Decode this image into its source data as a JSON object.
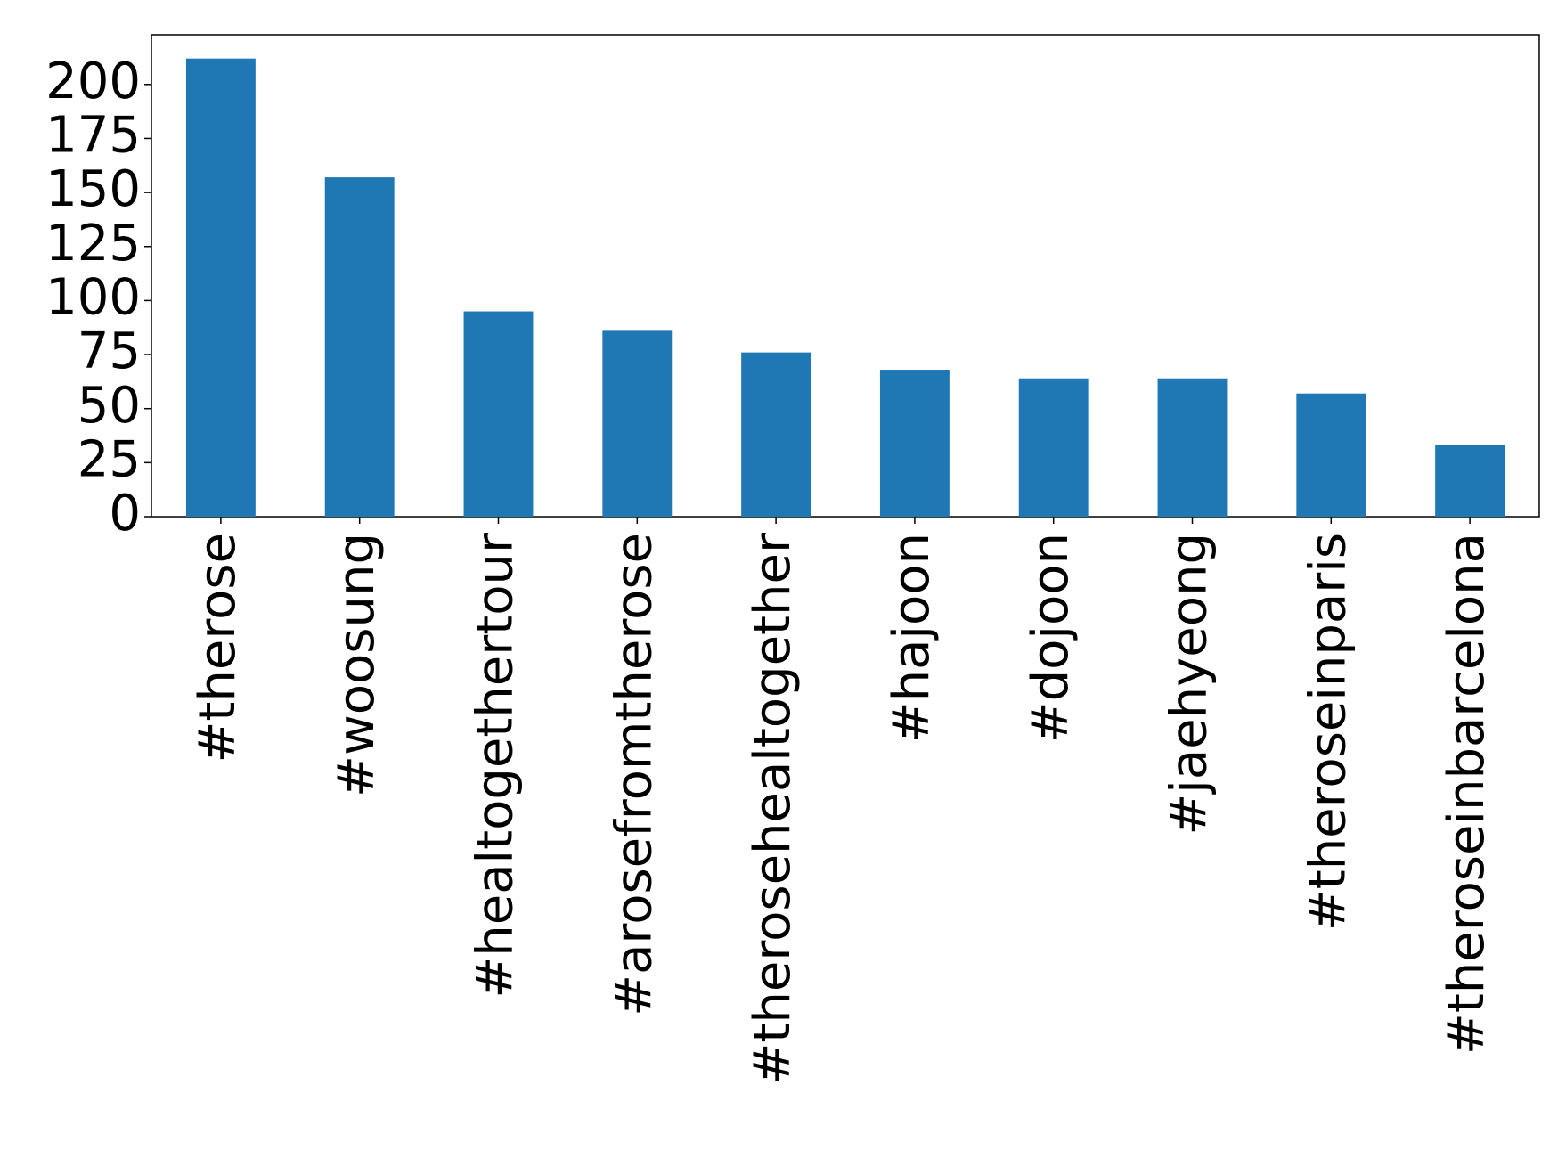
{
  "chart_data": {
    "type": "bar",
    "categories": [
      "#therose",
      "#woosung",
      "#healtogethertour",
      "#arosefromtherose",
      "#therosehealtogether",
      "#hajoon",
      "#dojoon",
      "#jaehyeong",
      "#theroseinparis",
      "#theroseinbarcelona"
    ],
    "values": [
      212,
      157,
      95,
      86,
      76,
      68,
      64,
      64,
      57,
      33
    ],
    "color": "#1f77b4",
    "ylim": [
      0,
      223
    ],
    "yticks": [
      0,
      25,
      50,
      75,
      100,
      125,
      150,
      175,
      200
    ],
    "grid": false
  }
}
